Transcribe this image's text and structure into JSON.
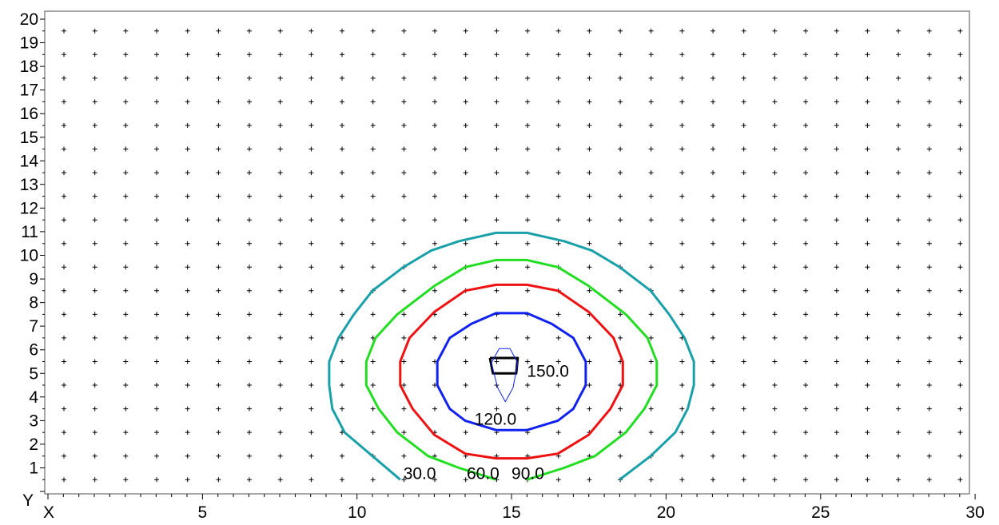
{
  "chart_data": {
    "type": "contour",
    "xlabel": "X",
    "ylabel": "Y",
    "xlim": [
      0,
      30
    ],
    "ylim": [
      0,
      20
    ],
    "x_ticks": [
      5,
      10,
      15,
      20,
      25,
      30
    ],
    "y_ticks": [
      1,
      2,
      3,
      4,
      5,
      6,
      7,
      8,
      9,
      10,
      11,
      12,
      13,
      14,
      15,
      16,
      17,
      18,
      19,
      20
    ],
    "grid": "plus markers at integer x 0-29, y 0.5-19.5",
    "contours": [
      {
        "level": "30.0",
        "color": "#1aa0a8",
        "points": [
          [
            11.4,
            0.5
          ],
          [
            10.5,
            1.5
          ],
          [
            9.6,
            2.5
          ],
          [
            9.2,
            3.5
          ],
          [
            9.1,
            4.5
          ],
          [
            9.1,
            5.5
          ],
          [
            9.4,
            6.5
          ],
          [
            9.9,
            7.5
          ],
          [
            10.5,
            8.5
          ],
          [
            11.5,
            9.5
          ],
          [
            12.4,
            10.2
          ],
          [
            13.3,
            10.6
          ],
          [
            14.5,
            10.95
          ],
          [
            15.5,
            10.95
          ],
          [
            16.7,
            10.6
          ],
          [
            17.6,
            10.2
          ],
          [
            18.5,
            9.5
          ],
          [
            19.5,
            8.5
          ],
          [
            20.1,
            7.5
          ],
          [
            20.6,
            6.5
          ],
          [
            20.9,
            5.5
          ],
          [
            20.9,
            4.5
          ],
          [
            20.7,
            3.5
          ],
          [
            20.3,
            2.5
          ],
          [
            19.5,
            1.5
          ],
          [
            18.5,
            0.5
          ]
        ]
      },
      {
        "level": "60.0",
        "color": "#22dd22",
        "points": [
          [
            14.5,
            0.5
          ],
          [
            13.3,
            1.0
          ],
          [
            12.3,
            1.5
          ],
          [
            11.3,
            2.5
          ],
          [
            10.7,
            3.5
          ],
          [
            10.3,
            4.5
          ],
          [
            10.3,
            5.5
          ],
          [
            10.6,
            6.5
          ],
          [
            11.3,
            7.5
          ],
          [
            12.5,
            8.7
          ],
          [
            13.5,
            9.5
          ],
          [
            14.5,
            9.8
          ],
          [
            15.5,
            9.8
          ],
          [
            16.5,
            9.5
          ],
          [
            17.5,
            8.7
          ],
          [
            18.7,
            7.5
          ],
          [
            19.4,
            6.5
          ],
          [
            19.7,
            5.5
          ],
          [
            19.7,
            4.5
          ],
          [
            19.3,
            3.5
          ],
          [
            18.7,
            2.5
          ],
          [
            17.7,
            1.5
          ],
          [
            16.7,
            1.0
          ],
          [
            15.5,
            0.5
          ]
        ]
      },
      {
        "level": "90.0",
        "color": "#ee1111",
        "points": [
          [
            14.5,
            1.4
          ],
          [
            15.5,
            1.4
          ],
          [
            16.5,
            1.6
          ],
          [
            17.5,
            2.4
          ],
          [
            18.2,
            3.5
          ],
          [
            18.6,
            4.5
          ],
          [
            18.6,
            5.5
          ],
          [
            18.3,
            6.5
          ],
          [
            17.5,
            7.6
          ],
          [
            16.5,
            8.5
          ],
          [
            15.5,
            8.75
          ],
          [
            14.5,
            8.75
          ],
          [
            13.5,
            8.5
          ],
          [
            12.5,
            7.6
          ],
          [
            11.7,
            6.5
          ],
          [
            11.4,
            5.5
          ],
          [
            11.4,
            4.5
          ],
          [
            11.8,
            3.5
          ],
          [
            12.5,
            2.4
          ],
          [
            13.5,
            1.6
          ],
          [
            14.5,
            1.4
          ]
        ]
      },
      {
        "level": "120.0",
        "color": "#1122ee",
        "points": [
          [
            14.5,
            2.6
          ],
          [
            15.5,
            2.6
          ],
          [
            16.5,
            3.0
          ],
          [
            17.0,
            3.5
          ],
          [
            17.4,
            4.5
          ],
          [
            17.4,
            5.5
          ],
          [
            17.0,
            6.5
          ],
          [
            16.3,
            7.1
          ],
          [
            15.5,
            7.55
          ],
          [
            14.5,
            7.55
          ],
          [
            13.7,
            7.1
          ],
          [
            13.0,
            6.5
          ],
          [
            12.6,
            5.5
          ],
          [
            12.6,
            4.5
          ],
          [
            13.0,
            3.5
          ],
          [
            13.5,
            3.0
          ],
          [
            14.5,
            2.6
          ]
        ]
      },
      {
        "level": "150.0",
        "color": "#000000",
        "points": [
          [
            14.3,
            5.65
          ],
          [
            15.2,
            5.65
          ],
          [
            15.15,
            5.0
          ],
          [
            14.4,
            5.0
          ],
          [
            14.3,
            5.65
          ]
        ]
      },
      {
        "level": "",
        "color": "#1122ee",
        "points": [
          [
            14.6,
            6.05
          ],
          [
            14.95,
            6.05
          ],
          [
            15.2,
            5.45
          ],
          [
            15.05,
            4.4
          ],
          [
            14.8,
            3.8
          ],
          [
            14.55,
            4.4
          ],
          [
            14.35,
            5.45
          ],
          [
            14.6,
            6.05
          ]
        ]
      }
    ],
    "contour_labels": [
      {
        "text": "30.0",
        "x": 11.5,
        "y": 0.52
      },
      {
        "text": "60.0",
        "x": 13.55,
        "y": 0.52
      },
      {
        "text": "90.0",
        "x": 15.0,
        "y": 0.52
      },
      {
        "text": "120.0",
        "x": 13.8,
        "y": 2.82
      },
      {
        "text": "150.0",
        "x": 15.5,
        "y": 4.85
      }
    ]
  }
}
